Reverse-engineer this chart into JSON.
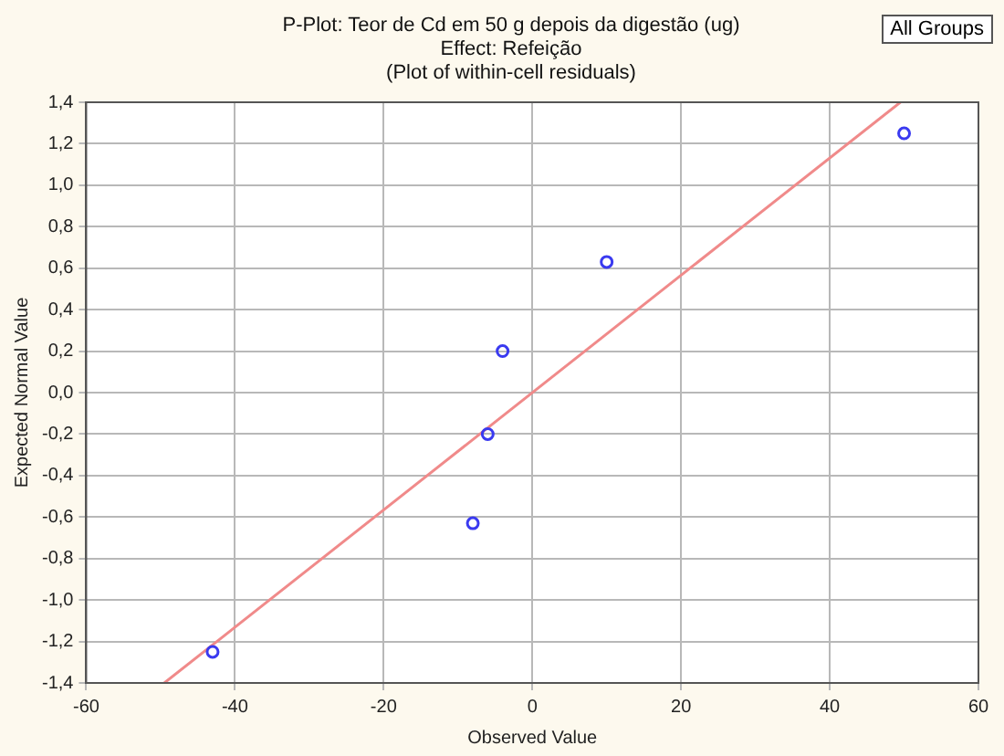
{
  "chart_data": {
    "type": "scatter",
    "title": "P-Plot: Teor de Cd em 50 g depois da digestão (ug)",
    "subtitle": "Effect: Refeição",
    "annotations": [
      "(Plot of within-cell residuals)",
      "All Groups"
    ],
    "xlabel": "Observed Value",
    "ylabel": "Expected Normal Value",
    "series": [
      {
        "color": "#3a3af0",
        "x": [
          -43,
          -8,
          -6,
          -4,
          10,
          50
        ],
        "values": [
          -1.25,
          -0.63,
          -0.2,
          0.2,
          0.63,
          1.25
        ]
      },
      {
        "type": "line",
        "marker": "none",
        "color": "#f08a8a",
        "x": [
          -49.5,
          49.5
        ],
        "values": [
          -1.4,
          1.4
        ]
      }
    ],
    "xlim": [
      -60,
      60
    ],
    "xticks": [
      -60,
      -40,
      -20,
      0,
      20,
      40,
      60
    ],
    "ylim": [
      -1.4,
      1.4
    ],
    "yticks": [
      {
        "value": -1.4,
        "label": "-1,4"
      },
      {
        "value": -1.2,
        "label": "-1,2"
      },
      {
        "value": -1.0,
        "label": "-1,0"
      },
      {
        "value": -0.8,
        "label": "-0,8"
      },
      {
        "value": -0.6,
        "label": "-0,6"
      },
      {
        "value": -0.4,
        "label": "-0,4"
      },
      {
        "value": -0.2,
        "label": "-0,2"
      },
      {
        "value": 0,
        "label": "0,0"
      },
      {
        "value": 0.2,
        "label": "0,2"
      },
      {
        "value": 0.4,
        "label": "0,4"
      },
      {
        "value": 0.6,
        "label": "0,6"
      },
      {
        "value": 0.8,
        "label": "0,8"
      },
      {
        "value": 1.0,
        "label": "1,0"
      },
      {
        "value": 1.2,
        "label": "1,2"
      },
      {
        "value": 1.4,
        "label": "1,4"
      }
    ],
    "grid": true,
    "legend": false,
    "marker": "circle"
  }
}
